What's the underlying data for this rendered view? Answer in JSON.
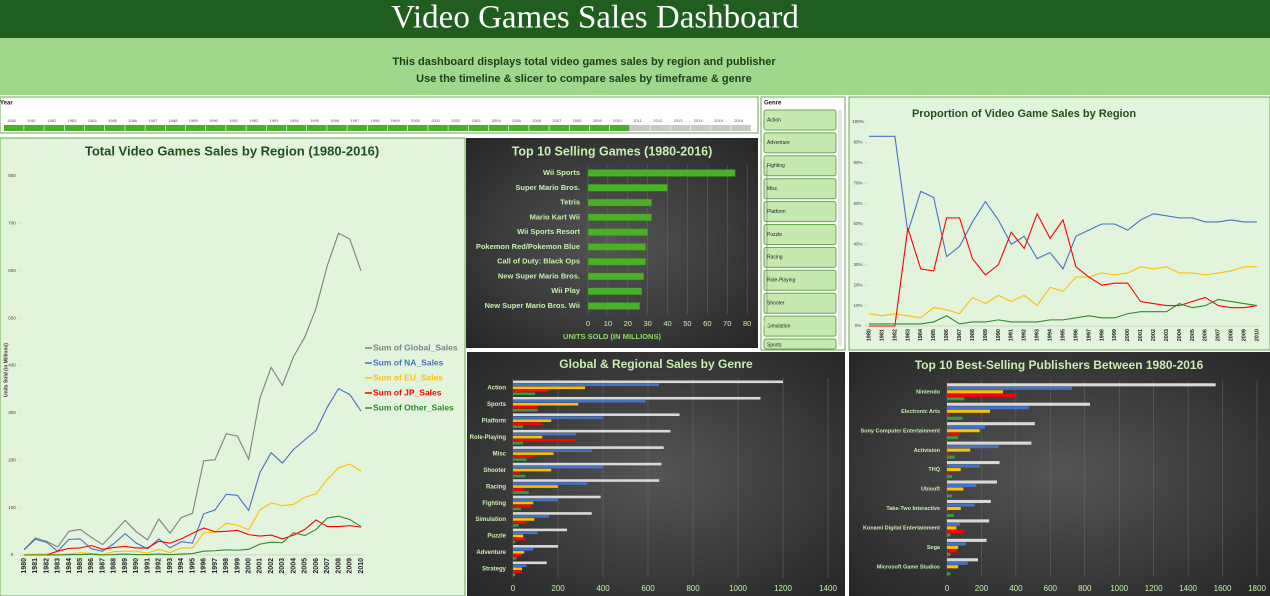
{
  "header": {
    "title": "Video Games Sales Dashboard",
    "subtitle_lines": [
      "This dashboard displays total video games sales by region and publisher",
      "Use the timeline & slicer to compare sales by timeframe & genre"
    ]
  },
  "timeline": {
    "label": "Year",
    "years": [
      1980,
      1981,
      1982,
      1983,
      1984,
      1985,
      1986,
      1987,
      1988,
      1989,
      1990,
      1991,
      1992,
      1993,
      1994,
      1995,
      1996,
      1997,
      1998,
      1999,
      2000,
      2001,
      2002,
      2003,
      2004,
      2005,
      2006,
      2007,
      2008,
      2009,
      2010,
      2011,
      2012,
      2013,
      2014,
      2015,
      2016
    ],
    "selected_through": 2010
  },
  "slicer": {
    "title": "Genre",
    "items": [
      "Action",
      "Adventure",
      "Fighting",
      "Misc",
      "Platform",
      "Puzzle",
      "Racing",
      "Role-Playing",
      "Shooter",
      "Simulation",
      "Sports"
    ]
  },
  "chart_data": [
    {
      "type": "line",
      "title": "Total Video Games Sales by Region (1980-2016)",
      "y_label": "Units Sold (in Millions)",
      "legend": "right",
      "grid": false,
      "x": [
        1980,
        1981,
        1982,
        1983,
        1984,
        1985,
        1986,
        1987,
        1988,
        1989,
        1990,
        1991,
        1992,
        1993,
        1994,
        1995,
        1996,
        1997,
        1998,
        1999,
        2000,
        2001,
        2002,
        2003,
        2004,
        2005,
        2006,
        2007,
        2008,
        2009,
        2010
      ],
      "xlim": [
        1980,
        2010
      ],
      "ylim": [
        0,
        800
      ],
      "yticks": [
        0,
        100,
        200,
        300,
        400,
        500,
        600,
        700,
        800
      ],
      "series": [
        {
          "name": "Sum of Global_Sales",
          "color": "#7f7f7f",
          "values": [
            11,
            36,
            29,
            17,
            50,
            54,
            37,
            22,
            47,
            73,
            49,
            32,
            76,
            46,
            79,
            88,
            199,
            201,
            256,
            251,
            202,
            331,
            396,
            358,
            419,
            460,
            521,
            611,
            679,
            667,
            600
          ]
        },
        {
          "name": "Sum of NA_Sales",
          "color": "#4472c4",
          "values": [
            11,
            33,
            27,
            8,
            33,
            34,
            13,
            8,
            24,
            45,
            25,
            13,
            34,
            15,
            28,
            25,
            87,
            95,
            128,
            126,
            94,
            174,
            216,
            194,
            223,
            243,
            263,
            312,
            351,
            339,
            304
          ]
        },
        {
          "name": "Sum of EU_Sales",
          "color": "#ffc000",
          "values": [
            1,
            2,
            2,
            1,
            2,
            5,
            3,
            1,
            7,
            8,
            8,
            4,
            12,
            5,
            15,
            15,
            47,
            48,
            67,
            63,
            53,
            95,
            110,
            104,
            107,
            122,
            129,
            160,
            184,
            192,
            177
          ]
        },
        {
          "name": "Sum of JP_Sales",
          "color": "#ff0000",
          "values": [
            0,
            0,
            0,
            8,
            14,
            15,
            20,
            12,
            16,
            18,
            15,
            15,
            29,
            25,
            34,
            46,
            57,
            49,
            50,
            52,
            43,
            40,
            42,
            34,
            42,
            54,
            74,
            60,
            60,
            62,
            59
          ]
        },
        {
          "name": "Sum of Other_Sales",
          "color": "#2e8b2e",
          "values": [
            0,
            0,
            0,
            0,
            1,
            1,
            2,
            0,
            1,
            2,
            1,
            1,
            2,
            1,
            2,
            3,
            8,
            9,
            11,
            10,
            12,
            23,
            27,
            26,
            47,
            41,
            54,
            78,
            82,
            75,
            60
          ]
        }
      ]
    },
    {
      "type": "bar",
      "title": "Top 10 Selling Games (1980-2016)",
      "x_label": "UNITS SOLD (IN MILLIONS)",
      "grid": true,
      "color": "#4caf2a",
      "categories": [
        "Wii Sports",
        "Super Mario Bros.",
        "Tetris",
        "Mario Kart Wii",
        "Wii Sports Resort",
        "Pokemon Red/Pokemon Blue",
        "Call of Duty: Black Ops",
        "New Super Mario Bros.",
        "Wii Play",
        "New Super Mario Bros. Wii"
      ],
      "values": [
        74,
        40,
        32,
        32,
        30,
        29,
        29,
        28,
        27,
        26
      ],
      "xlim": [
        0,
        90
      ],
      "xticks": [
        0,
        10,
        20,
        30,
        40,
        50,
        60,
        70,
        80,
        90
      ]
    },
    {
      "type": "line",
      "title": "Proportion of Video Game Sales by Region",
      "grid": false,
      "x": [
        1980,
        1981,
        1982,
        1983,
        1984,
        1985,
        1986,
        1987,
        1988,
        1989,
        1990,
        1991,
        1992,
        1993,
        1994,
        1995,
        1996,
        1997,
        1998,
        1999,
        2000,
        2001,
        2002,
        2003,
        2004,
        2005,
        2006,
        2007,
        2008,
        2009,
        2010
      ],
      "xlim": [
        1980,
        2010
      ],
      "ylim": [
        0,
        100
      ],
      "yticks": [
        {
          "value": 0,
          "label": "0%"
        },
        {
          "value": 10,
          "label": "10%"
        },
        {
          "value": 20,
          "label": "20%"
        },
        {
          "value": 30,
          "label": "30%"
        },
        {
          "value": 40,
          "label": "40%"
        },
        {
          "value": 50,
          "label": "50%"
        },
        {
          "value": 60,
          "label": "60%"
        },
        {
          "value": 70,
          "label": "70%"
        },
        {
          "value": 80,
          "label": "80%"
        },
        {
          "value": 90,
          "label": "90%"
        },
        {
          "value": 100,
          "label": "100%"
        }
      ],
      "series": [
        {
          "color": "#4472c4",
          "values": [
            93,
            93,
            93,
            46,
            66,
            63,
            34,
            39,
            51,
            61,
            52,
            40,
            44,
            33,
            36,
            28,
            44,
            47,
            50,
            50,
            47,
            52,
            55,
            54,
            53,
            53,
            51,
            51,
            52,
            51,
            51
          ]
        },
        {
          "color": "#ffc000",
          "values": [
            6,
            5,
            6,
            5,
            4,
            9,
            8,
            6,
            14,
            11,
            15,
            12,
            15,
            10,
            19,
            17,
            24,
            24,
            26,
            25,
            26,
            29,
            28,
            29,
            26,
            26,
            25,
            26,
            27,
            29,
            29
          ]
        },
        {
          "color": "#ff0000",
          "values": [
            0,
            0,
            0,
            48,
            28,
            27,
            53,
            53,
            33,
            25,
            30,
            46,
            38,
            55,
            43,
            52,
            29,
            24,
            20,
            21,
            21,
            12,
            11,
            10,
            10,
            12,
            14,
            10,
            9,
            9,
            10
          ]
        },
        {
          "color": "#2e8b2e",
          "values": [
            1,
            1,
            1,
            1,
            1,
            2,
            5,
            1,
            2,
            2,
            3,
            2,
            2,
            2,
            3,
            3,
            4,
            5,
            4,
            4,
            6,
            7,
            7,
            7,
            11,
            9,
            10,
            13,
            12,
            11,
            10
          ]
        }
      ]
    },
    {
      "type": "bar",
      "title": "Global & Regional Sales by Genre",
      "grid": true,
      "categories": [
        "Action",
        "Sports",
        "Platform",
        "Role-Playing",
        "Misc",
        "Shooter",
        "Racing",
        "Fighting",
        "Simulation",
        "Puzzle",
        "Adventure",
        "Strategy"
      ],
      "xlim": [
        0,
        1400
      ],
      "xticks": [
        0,
        200,
        400,
        600,
        800,
        1000,
        1200,
        1400
      ],
      "series": [
        {
          "color": "#d9d9d9",
          "values": [
            1200,
            1100,
            740,
            700,
            670,
            660,
            650,
            390,
            350,
            240,
            200,
            150
          ]
        },
        {
          "color": "#4472c4",
          "values": [
            649,
            590,
            400,
            280,
            350,
            400,
            330,
            200,
            160,
            110,
            90,
            60
          ]
        },
        {
          "color": "#ffc000",
          "values": [
            320,
            290,
            170,
            130,
            180,
            170,
            200,
            90,
            95,
            45,
            50,
            40
          ]
        },
        {
          "color": "#ff0000",
          "values": [
            156,
            110,
            130,
            280,
            90,
            30,
            50,
            80,
            60,
            55,
            40,
            40
          ]
        },
        {
          "color": "#3c9a3c",
          "values": [
            98,
            110,
            45,
            45,
            60,
            55,
            70,
            35,
            25,
            10,
            15,
            10
          ]
        }
      ]
    },
    {
      "type": "bar",
      "title": "Top 10 Best-Selling Publishers Between 1980-2016",
      "grid": true,
      "categories": [
        "Nintendo",
        "Electronic Arts",
        "Sony Computer Entertainment",
        "Activision",
        "THQ",
        "Ubisoft",
        "Take-Two Interactive",
        "Konami Digital Entertainment",
        "Sega",
        "Microsoft Game Studios"
      ],
      "xlim": [
        0,
        1800
      ],
      "xticks": [
        0,
        200,
        400,
        600,
        800,
        1000,
        1200,
        1400,
        1600,
        1800
      ],
      "series": [
        {
          "color": "#d9d9d9",
          "values": [
            1560,
            830,
            510,
            490,
            305,
            290,
            255,
            245,
            230,
            180
          ]
        },
        {
          "color": "#4472c4",
          "values": [
            725,
            475,
            220,
            300,
            190,
            170,
            160,
            75,
            110,
            120
          ]
        },
        {
          "color": "#ffc000",
          "values": [
            325,
            250,
            190,
            135,
            80,
            95,
            80,
            55,
            65,
            65
          ]
        },
        {
          "color": "#ff0000",
          "values": [
            395,
            15,
            75,
            10,
            10,
            10,
            8,
            100,
            60,
            3
          ]
        },
        {
          "color": "#3c9a3c",
          "values": [
            100,
            90,
            65,
            45,
            30,
            30,
            40,
            20,
            20,
            20
          ]
        }
      ]
    }
  ]
}
